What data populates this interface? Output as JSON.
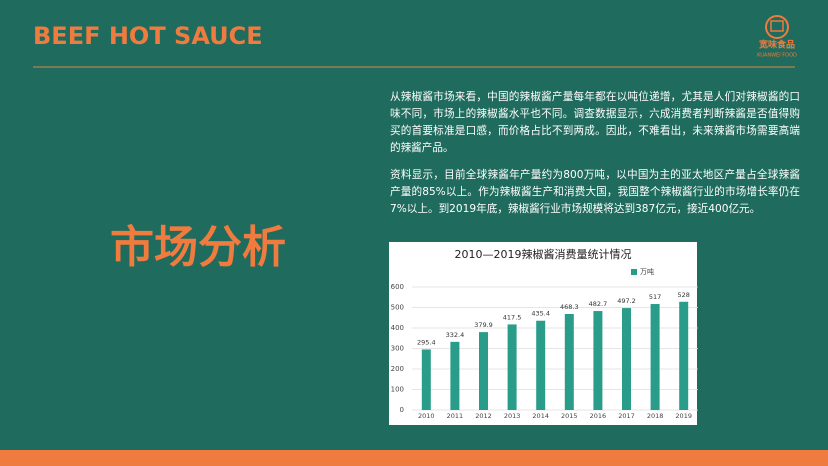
{
  "header": {
    "title": "BEEF HOT SAUCE",
    "logo_name": "宽味食品",
    "logo_sub": "KUANWEI FOOD"
  },
  "section_title": "市场分析",
  "paragraphs": [
    "从辣椒酱市场来看，中国的辣椒酱产量每年都在以吨位递增，尤其是人们对辣椒酱的口味不同，市场上的辣椒酱水平也不同。调查数据显示，六成消费者判断辣酱是否值得购买的首要标准是口感，而价格占比不到两成。因此，不难看出，未来辣酱市场需要高端的辣酱产品。",
    "资料显示，目前全球辣酱年产量约为800万吨，以中国为主的亚太地区产量占全球辣酱产量的85%以上。作为辣椒酱生产和消费大国，我国整个辣椒酱行业的市场增长率仍在7%以上。到2019年底，辣椒酱行业市场规模将达到387亿元，接近400亿元。"
  ],
  "chart_data": {
    "type": "bar",
    "title": "2010—2019辣椒酱消费量统计情况",
    "categories": [
      "2010",
      "2011",
      "2012",
      "2013",
      "2014",
      "2015",
      "2016",
      "2017",
      "2018",
      "2019"
    ],
    "series": [
      {
        "name": "万吨",
        "color": "#2a9d8a",
        "values": [
          295.4,
          332.4,
          379.9,
          417.5,
          435.4,
          468.3,
          482.7,
          497.2,
          517,
          528
        ]
      }
    ],
    "ylim": [
      0,
      600
    ],
    "yticks": [
      0,
      100,
      200,
      300,
      400,
      500,
      600
    ],
    "grid": true,
    "legend": "top-right"
  }
}
